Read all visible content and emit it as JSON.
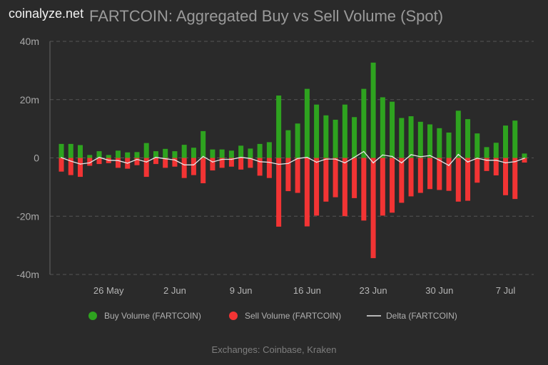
{
  "brand": "coinalyze.net",
  "chart_data": {
    "type": "bar",
    "title": "FARTCOIN: Aggregated Buy vs Sell Volume (Spot)",
    "footer": "Exchanges: Coinbase, Kraken",
    "ylim": [
      -40,
      40
    ],
    "y_unit": "m",
    "yticks": [
      "40m",
      "20m",
      "0",
      "-20m",
      "-40m"
    ],
    "ytick_values": [
      40,
      20,
      0,
      -20,
      -40
    ],
    "grid": "horizontal dashed",
    "legend_placement": "bottom",
    "xtick_labels": [
      {
        "label": "26 May",
        "category": "May 26"
      },
      {
        "label": "2 Jun",
        "category": "Jun 2"
      },
      {
        "label": "9 Jun",
        "category": "Jun 9"
      },
      {
        "label": "16 Jun",
        "category": "Jun 16"
      },
      {
        "label": "23 Jun",
        "category": "Jun 23"
      },
      {
        "label": "30 Jun",
        "category": "Jun 30"
      },
      {
        "label": "7 Jul",
        "category": "Jul 7"
      }
    ],
    "categories": [
      "May 21",
      "May 22",
      "May 23",
      "May 24",
      "May 25",
      "May 26",
      "May 27",
      "May 28",
      "May 29",
      "May 30",
      "May 31",
      "Jun 1",
      "Jun 2",
      "Jun 3",
      "Jun 4",
      "Jun 5",
      "Jun 6",
      "Jun 7",
      "Jun 8",
      "Jun 9",
      "Jun 10",
      "Jun 11",
      "Jun 12",
      "Jun 13",
      "Jun 14",
      "Jun 15",
      "Jun 16",
      "Jun 17",
      "Jun 18",
      "Jun 19",
      "Jun 20",
      "Jun 21",
      "Jun 22",
      "Jun 23",
      "Jun 24",
      "Jun 25",
      "Jun 26",
      "Jun 27",
      "Jun 28",
      "Jun 29",
      "Jun 30",
      "Jul 1",
      "Jul 2",
      "Jul 3",
      "Jul 4",
      "Jul 5",
      "Jul 6",
      "Jul 7",
      "Jul 8",
      "Jul 9"
    ],
    "series": [
      {
        "name": "Buy Volume (FARTCOIN)",
        "kind": "bar",
        "color": "#2ea31f",
        "values": [
          4.8,
          4.8,
          4.4,
          1.0,
          2.3,
          1.0,
          2.5,
          1.9,
          2.0,
          5.1,
          2.3,
          3.1,
          2.3,
          4.5,
          3.5,
          9.2,
          2.9,
          2.9,
          2.5,
          4.2,
          3.2,
          4.8,
          5.4,
          21.4,
          9.5,
          11.8,
          23.7,
          18.3,
          14.6,
          13.1,
          18.3,
          14.0,
          23.7,
          32.7,
          20.8,
          19.3,
          13.7,
          14.3,
          12.4,
          11.5,
          10.2,
          8.7,
          16.2,
          13.3,
          8.4,
          3.7,
          5.2,
          11.1,
          12.8,
          1.5
        ]
      },
      {
        "name": "Sell Volume (FARTCOIN)",
        "kind": "bar",
        "color": "#f23434",
        "values": [
          -4.7,
          -5.9,
          -6.5,
          -2.7,
          -2.1,
          -1.8,
          -3.4,
          -3.7,
          -2.5,
          -6.5,
          -2.1,
          -3.4,
          -3.0,
          -6.9,
          -5.9,
          -8.7,
          -4.3,
          -3.4,
          -3.0,
          -4.0,
          -3.4,
          -6.1,
          -6.9,
          -23.6,
          -11.4,
          -12.0,
          -23.5,
          -19.8,
          -15.0,
          -13.5,
          -20.0,
          -13.8,
          -21.5,
          -34.4,
          -19.8,
          -18.8,
          -15.4,
          -13.2,
          -12.0,
          -10.7,
          -11.0,
          -11.3,
          -15.0,
          -14.7,
          -8.5,
          -4.5,
          -6.0,
          -12.8,
          -14.1,
          -1.6
        ]
      },
      {
        "name": "Delta (FARTCOIN)",
        "kind": "line",
        "color": "#e6e6e6",
        "values": [
          0.1,
          -1.1,
          -2.1,
          -1.7,
          0.2,
          -0.8,
          -0.9,
          -1.8,
          -0.5,
          -1.4,
          0.2,
          -0.3,
          -0.7,
          -2.4,
          -2.4,
          0.5,
          -1.4,
          -0.5,
          -0.5,
          0.2,
          -0.2,
          -1.3,
          -1.5,
          -2.2,
          -1.9,
          -0.2,
          0.2,
          -1.5,
          -0.4,
          -0.4,
          -1.7,
          0.2,
          2.2,
          -1.7,
          1.0,
          0.5,
          -1.7,
          1.1,
          0.4,
          0.8,
          -0.8,
          -2.6,
          1.2,
          -1.4,
          -0.1,
          -0.8,
          -0.8,
          -1.7,
          -1.3,
          -0.1
        ]
      }
    ]
  }
}
